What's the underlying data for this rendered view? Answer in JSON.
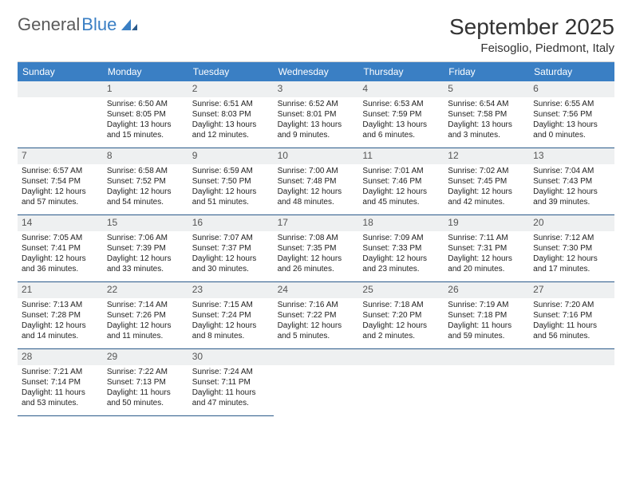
{
  "brand": {
    "general": "General",
    "blue": "Blue"
  },
  "title": "September 2025",
  "location": "Feisoglio, Piedmont, Italy",
  "colors": {
    "header_bg": "#3a7fc4",
    "header_text": "#ffffff",
    "daynum_bg": "#eef0f1",
    "cell_border": "#2a5a8a",
    "body_text": "#222222",
    "title_text": "#333333"
  },
  "day_headers": [
    "Sunday",
    "Monday",
    "Tuesday",
    "Wednesday",
    "Thursday",
    "Friday",
    "Saturday"
  ],
  "weeks": [
    [
      null,
      {
        "n": "1",
        "sr": "Sunrise: 6:50 AM",
        "ss": "Sunset: 8:05 PM",
        "dl": "Daylight: 13 hours and 15 minutes."
      },
      {
        "n": "2",
        "sr": "Sunrise: 6:51 AM",
        "ss": "Sunset: 8:03 PM",
        "dl": "Daylight: 13 hours and 12 minutes."
      },
      {
        "n": "3",
        "sr": "Sunrise: 6:52 AM",
        "ss": "Sunset: 8:01 PM",
        "dl": "Daylight: 13 hours and 9 minutes."
      },
      {
        "n": "4",
        "sr": "Sunrise: 6:53 AM",
        "ss": "Sunset: 7:59 PM",
        "dl": "Daylight: 13 hours and 6 minutes."
      },
      {
        "n": "5",
        "sr": "Sunrise: 6:54 AM",
        "ss": "Sunset: 7:58 PM",
        "dl": "Daylight: 13 hours and 3 minutes."
      },
      {
        "n": "6",
        "sr": "Sunrise: 6:55 AM",
        "ss": "Sunset: 7:56 PM",
        "dl": "Daylight: 13 hours and 0 minutes."
      }
    ],
    [
      {
        "n": "7",
        "sr": "Sunrise: 6:57 AM",
        "ss": "Sunset: 7:54 PM",
        "dl": "Daylight: 12 hours and 57 minutes."
      },
      {
        "n": "8",
        "sr": "Sunrise: 6:58 AM",
        "ss": "Sunset: 7:52 PM",
        "dl": "Daylight: 12 hours and 54 minutes."
      },
      {
        "n": "9",
        "sr": "Sunrise: 6:59 AM",
        "ss": "Sunset: 7:50 PM",
        "dl": "Daylight: 12 hours and 51 minutes."
      },
      {
        "n": "10",
        "sr": "Sunrise: 7:00 AM",
        "ss": "Sunset: 7:48 PM",
        "dl": "Daylight: 12 hours and 48 minutes."
      },
      {
        "n": "11",
        "sr": "Sunrise: 7:01 AM",
        "ss": "Sunset: 7:46 PM",
        "dl": "Daylight: 12 hours and 45 minutes."
      },
      {
        "n": "12",
        "sr": "Sunrise: 7:02 AM",
        "ss": "Sunset: 7:45 PM",
        "dl": "Daylight: 12 hours and 42 minutes."
      },
      {
        "n": "13",
        "sr": "Sunrise: 7:04 AM",
        "ss": "Sunset: 7:43 PM",
        "dl": "Daylight: 12 hours and 39 minutes."
      }
    ],
    [
      {
        "n": "14",
        "sr": "Sunrise: 7:05 AM",
        "ss": "Sunset: 7:41 PM",
        "dl": "Daylight: 12 hours and 36 minutes."
      },
      {
        "n": "15",
        "sr": "Sunrise: 7:06 AM",
        "ss": "Sunset: 7:39 PM",
        "dl": "Daylight: 12 hours and 33 minutes."
      },
      {
        "n": "16",
        "sr": "Sunrise: 7:07 AM",
        "ss": "Sunset: 7:37 PM",
        "dl": "Daylight: 12 hours and 30 minutes."
      },
      {
        "n": "17",
        "sr": "Sunrise: 7:08 AM",
        "ss": "Sunset: 7:35 PM",
        "dl": "Daylight: 12 hours and 26 minutes."
      },
      {
        "n": "18",
        "sr": "Sunrise: 7:09 AM",
        "ss": "Sunset: 7:33 PM",
        "dl": "Daylight: 12 hours and 23 minutes."
      },
      {
        "n": "19",
        "sr": "Sunrise: 7:11 AM",
        "ss": "Sunset: 7:31 PM",
        "dl": "Daylight: 12 hours and 20 minutes."
      },
      {
        "n": "20",
        "sr": "Sunrise: 7:12 AM",
        "ss": "Sunset: 7:30 PM",
        "dl": "Daylight: 12 hours and 17 minutes."
      }
    ],
    [
      {
        "n": "21",
        "sr": "Sunrise: 7:13 AM",
        "ss": "Sunset: 7:28 PM",
        "dl": "Daylight: 12 hours and 14 minutes."
      },
      {
        "n": "22",
        "sr": "Sunrise: 7:14 AM",
        "ss": "Sunset: 7:26 PM",
        "dl": "Daylight: 12 hours and 11 minutes."
      },
      {
        "n": "23",
        "sr": "Sunrise: 7:15 AM",
        "ss": "Sunset: 7:24 PM",
        "dl": "Daylight: 12 hours and 8 minutes."
      },
      {
        "n": "24",
        "sr": "Sunrise: 7:16 AM",
        "ss": "Sunset: 7:22 PM",
        "dl": "Daylight: 12 hours and 5 minutes."
      },
      {
        "n": "25",
        "sr": "Sunrise: 7:18 AM",
        "ss": "Sunset: 7:20 PM",
        "dl": "Daylight: 12 hours and 2 minutes."
      },
      {
        "n": "26",
        "sr": "Sunrise: 7:19 AM",
        "ss": "Sunset: 7:18 PM",
        "dl": "Daylight: 11 hours and 59 minutes."
      },
      {
        "n": "27",
        "sr": "Sunrise: 7:20 AM",
        "ss": "Sunset: 7:16 PM",
        "dl": "Daylight: 11 hours and 56 minutes."
      }
    ],
    [
      {
        "n": "28",
        "sr": "Sunrise: 7:21 AM",
        "ss": "Sunset: 7:14 PM",
        "dl": "Daylight: 11 hours and 53 minutes."
      },
      {
        "n": "29",
        "sr": "Sunrise: 7:22 AM",
        "ss": "Sunset: 7:13 PM",
        "dl": "Daylight: 11 hours and 50 minutes."
      },
      {
        "n": "30",
        "sr": "Sunrise: 7:24 AM",
        "ss": "Sunset: 7:11 PM",
        "dl": "Daylight: 11 hours and 47 minutes."
      },
      null,
      null,
      null,
      null
    ]
  ]
}
